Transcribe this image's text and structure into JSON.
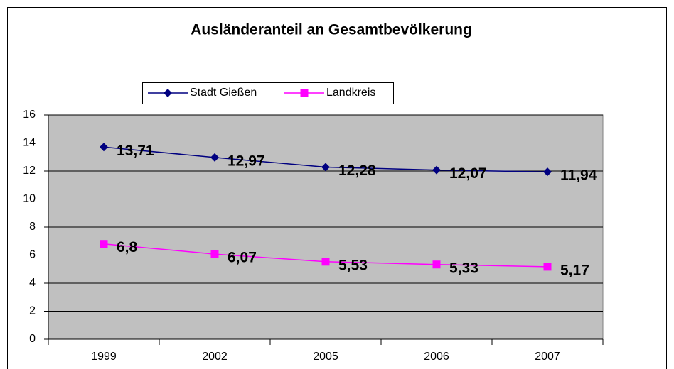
{
  "chart_data": {
    "type": "line",
    "title": "Ausländeranteil an Gesamtbevölkerung",
    "categories": [
      "1999",
      "2002",
      "2005",
      "2006",
      "2007"
    ],
    "series": [
      {
        "name": "Stadt Gießen",
        "color": "#000080",
        "marker": "diamond",
        "values": [
          13.71,
          12.97,
          12.28,
          12.07,
          11.94
        ],
        "value_labels": [
          "13,71",
          "12,97",
          "12,28",
          "12,07",
          "11,94"
        ]
      },
      {
        "name": "Landkreis",
        "color": "#ff00ff",
        "marker": "square",
        "values": [
          6.8,
          6.07,
          5.53,
          5.33,
          5.17
        ],
        "value_labels": [
          "6,8",
          "6,07",
          "5,53",
          "5,33",
          "5,17"
        ]
      }
    ],
    "ylim": [
      0,
      16
    ],
    "yticks": [
      0,
      2,
      4,
      6,
      8,
      10,
      12,
      14,
      16
    ],
    "grid": true,
    "legend": "top"
  }
}
